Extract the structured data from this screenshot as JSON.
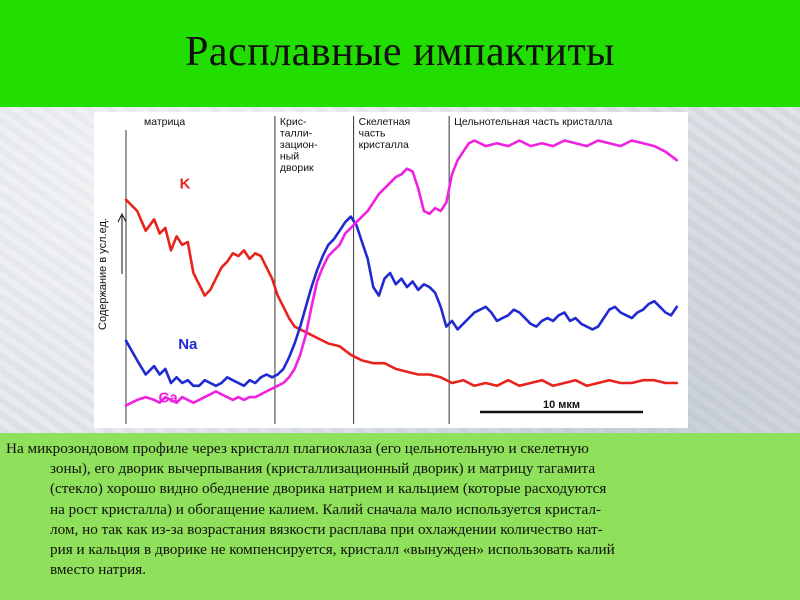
{
  "title": "Расплавные импактиты",
  "caption_lines": [
    "На микрозондовом профиле через кристалл плагиоклаза (его цельнотельную и скелетную",
    "зоны), его дворик вычерпывания (кристаллизационный дворик) и матрицу тагамита",
    "(стекло) хорошо видно обеднение дворика натрием и кальцием (которые расходуются",
    "на рост кристалла) и обогащение калием. Калий сначала мало используется кристал-",
    "лом, но так как из-за возрастания вязкости расплава при охлаждении количество нат-",
    "рия и кальция в дворике не компенсируется, кристалл «вынужден» использовать калий",
    "вместо натрия."
  ],
  "colors": {
    "title_bar": "#22dd00",
    "caption_bg": "#8fe05a",
    "K": "#e8231e",
    "Na": "#1f2ad0",
    "Ca": "#ee22e0"
  },
  "chart_data": {
    "type": "line",
    "ylabel": "Содержание в усл.ед.",
    "x_range": [
      0,
      100
    ],
    "y_range": [
      0,
      100
    ],
    "grid": false,
    "zones": [
      {
        "label_lines": [
          "матрица"
        ],
        "x_start": 0,
        "x_end": 26.5
      },
      {
        "label_lines": [
          "Крис-",
          "талли-",
          "зацион-",
          "ный",
          "дворик"
        ],
        "x_start": 26.5,
        "x_end": 40.5
      },
      {
        "label_lines": [
          "Скелетная",
          "часть",
          "кристалла"
        ],
        "x_start": 40.5,
        "x_end": 57.5
      },
      {
        "label_lines": [
          "Цельнотельная часть кристалла"
        ],
        "x_start": 57.5,
        "x_end": 100
      }
    ],
    "scale_bar": {
      "label": "10 мкм",
      "x_start": 63,
      "x_end": 92
    },
    "series": [
      {
        "name": "K",
        "x": [
          0,
          2,
          3.5,
          5,
          6,
          7,
          8,
          9,
          10,
          11,
          12,
          13,
          14,
          15,
          16,
          17,
          18,
          19,
          20,
          21,
          22,
          23,
          24,
          25,
          26,
          27,
          28,
          29,
          30,
          31,
          32,
          34,
          36,
          38,
          40,
          42,
          44,
          46,
          48,
          50,
          52,
          54,
          56,
          58,
          60,
          62,
          64,
          66,
          68,
          70,
          72,
          74,
          76,
          78,
          80,
          82,
          84,
          86,
          88,
          90,
          92,
          94,
          96,
          98
        ],
        "values": [
          76,
          72,
          65,
          69,
          64,
          66,
          58,
          63,
          60,
          61,
          50,
          46,
          42,
          44,
          48,
          52,
          54,
          57,
          56,
          58,
          55,
          57,
          56,
          52,
          48,
          42,
          38,
          34,
          31,
          30,
          29,
          27,
          25,
          24,
          21,
          19,
          18,
          18,
          16,
          15,
          14,
          14,
          13,
          11,
          12,
          10,
          11,
          10,
          12,
          10,
          11,
          12,
          10,
          11,
          12,
          10,
          11,
          12,
          11,
          11,
          12,
          12,
          11,
          11
        ]
      },
      {
        "name": "Na",
        "x": [
          0,
          2,
          3.5,
          5,
          6,
          7,
          8,
          9,
          10,
          11,
          12,
          13,
          14,
          15,
          16,
          17,
          18,
          19,
          20,
          21,
          22,
          23,
          24,
          25,
          26,
          27,
          28,
          29,
          30,
          31,
          32,
          33,
          34,
          35,
          36,
          37,
          38,
          39,
          40,
          41,
          42,
          43,
          44,
          45,
          46,
          47,
          48,
          49,
          50,
          51,
          52,
          53,
          54,
          55,
          56,
          57,
          58,
          59,
          60,
          61,
          62,
          63,
          64,
          65,
          66,
          67,
          68,
          69,
          70,
          71,
          72,
          73,
          74,
          75,
          76,
          77,
          78,
          79,
          80,
          81,
          82,
          83,
          84,
          85,
          86,
          87,
          88,
          89,
          90,
          91,
          92,
          93,
          94,
          95,
          96,
          97,
          98
        ],
        "values": [
          26,
          19,
          14,
          17,
          14,
          16,
          11,
          13,
          11,
          12,
          10,
          10,
          12,
          11,
          10,
          11,
          13,
          12,
          11,
          10,
          12,
          11,
          13,
          14,
          13,
          14,
          16,
          20,
          25,
          31,
          38,
          45,
          51,
          56,
          60,
          62,
          65,
          68,
          70,
          67,
          61,
          55,
          45,
          42,
          48,
          50,
          46,
          48,
          45,
          47,
          44,
          46,
          45,
          43,
          38,
          31,
          33,
          30,
          32,
          34,
          36,
          37,
          38,
          36,
          33,
          34,
          35,
          37,
          36,
          34,
          32,
          31,
          33,
          34,
          33,
          35,
          36,
          33,
          34,
          32,
          31,
          30,
          31,
          34,
          37,
          38,
          36,
          35,
          34,
          36,
          37,
          39,
          40,
          38,
          36,
          35,
          38
        ]
      },
      {
        "name": "Ca",
        "x": [
          0,
          2,
          3.5,
          5,
          6,
          7,
          8,
          9,
          10,
          11,
          12,
          13,
          14,
          15,
          16,
          17,
          18,
          19,
          20,
          21,
          22,
          23,
          24,
          25,
          26,
          27,
          28,
          29,
          30,
          31,
          32,
          33,
          34,
          35,
          36,
          37,
          38,
          39,
          40,
          41,
          42,
          43,
          44,
          45,
          46,
          47,
          48,
          49,
          50,
          51,
          52,
          53,
          54,
          55,
          56,
          57,
          58,
          59,
          60,
          61,
          62,
          64,
          66,
          68,
          70,
          72,
          74,
          76,
          78,
          80,
          82,
          84,
          86,
          88,
          90,
          92,
          94,
          96,
          98
        ],
        "values": [
          3,
          5,
          6,
          5,
          4,
          6,
          5,
          4,
          6,
          5,
          4,
          5,
          6,
          7,
          8,
          7,
          6,
          5,
          6,
          5,
          6,
          6,
          7,
          8,
          9,
          10,
          11,
          13,
          16,
          21,
          28,
          38,
          47,
          52,
          56,
          58,
          60,
          64,
          66,
          68,
          70,
          72,
          75,
          78,
          80,
          82,
          84,
          85,
          87,
          86,
          80,
          72,
          71,
          73,
          72,
          75,
          85,
          90,
          93,
          96,
          97,
          95,
          96,
          95,
          97,
          95,
          96,
          95,
          97,
          96,
          95,
          97,
          96,
          95,
          97,
          96,
          95,
          93,
          90
        ]
      }
    ],
    "series_labels": [
      {
        "name": "K",
        "x": 10.5,
        "y": 80
      },
      {
        "name": "Na",
        "x": 11,
        "y": 23
      },
      {
        "name": "Ca",
        "x": 7.5,
        "y": 4
      }
    ]
  }
}
